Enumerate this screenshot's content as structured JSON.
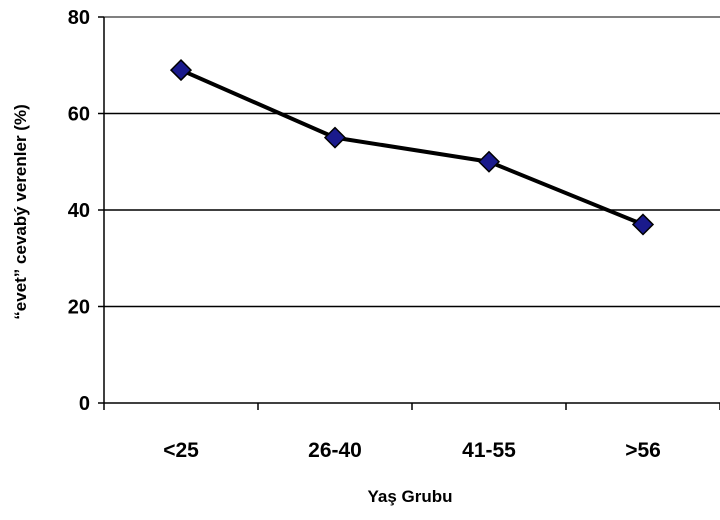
{
  "chart_data": {
    "type": "line",
    "categories": [
      "<25",
      "26-40",
      "41-55",
      ">56"
    ],
    "series": [
      {
        "values": [
          69,
          55,
          50,
          37
        ]
      }
    ],
    "xlabel": "Yaş Grubu",
    "ylabel": "“evet” cevabý verenler (%)",
    "ylim": [
      0,
      80
    ],
    "yticks": [
      0,
      20,
      40,
      60,
      80
    ],
    "ytick_labels": [
      "0",
      "20",
      "40",
      "60",
      "80"
    ],
    "grid": true,
    "legend": "none",
    "colors": {
      "line": "#000000",
      "marker_fill": "#1a1a8c",
      "marker_stroke": "#000000",
      "grid": "#000000"
    },
    "marker": "diamond-icon"
  }
}
